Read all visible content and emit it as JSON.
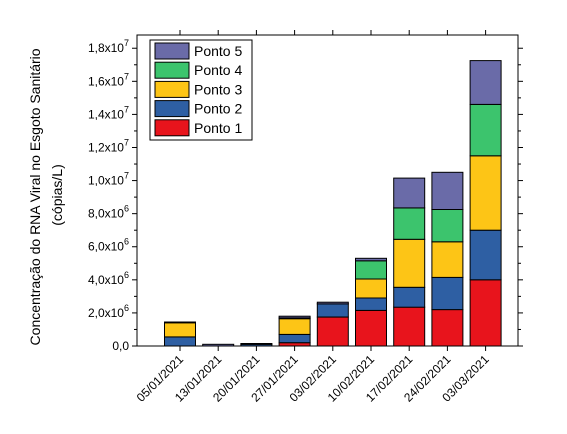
{
  "chart_data": {
    "type": "bar",
    "stacked": true,
    "title": "",
    "xlabel": "",
    "ylabel_line1": "Concentração do RNA Viral no Esgoto Sanitário",
    "ylabel_line2": "(cópias/L)",
    "ylim": [
      0,
      18800000
    ],
    "yticks": [
      {
        "value": 0,
        "mantissa": "0,0",
        "exp": ""
      },
      {
        "value": 2000000,
        "mantissa": "2,0x10",
        "exp": "6"
      },
      {
        "value": 4000000,
        "mantissa": "4,0x10",
        "exp": "6"
      },
      {
        "value": 6000000,
        "mantissa": "6,0x10",
        "exp": "6"
      },
      {
        "value": 8000000,
        "mantissa": "8,0x10",
        "exp": "6"
      },
      {
        "value": 10000000,
        "mantissa": "1,0x10",
        "exp": "7"
      },
      {
        "value": 12000000,
        "mantissa": "1,2x10",
        "exp": "7"
      },
      {
        "value": 14000000,
        "mantissa": "1,4x10",
        "exp": "7"
      },
      {
        "value": 16000000,
        "mantissa": "1,6x10",
        "exp": "7"
      },
      {
        "value": 18000000,
        "mantissa": "1,8x10",
        "exp": "7"
      }
    ],
    "categories": [
      "05/01/2021",
      "13/01/2021",
      "20/01/2021",
      "27/01/2021",
      "03/02/2021",
      "10/02/2021",
      "17/02/2021",
      "24/02/2021",
      "03/03/2021"
    ],
    "series": [
      {
        "name": "Ponto 1",
        "color": "#e8141c",
        "values": [
          0,
          0,
          0,
          200000,
          1750000,
          2150000,
          2350000,
          2200000,
          4000000
        ]
      },
      {
        "name": "Ponto 2",
        "color": "#2e5fa3",
        "values": [
          550000,
          0,
          100000,
          500000,
          800000,
          750000,
          1200000,
          1950000,
          3000000
        ]
      },
      {
        "name": "Ponto 3",
        "color": "#fdc516",
        "values": [
          850000,
          0,
          0,
          950000,
          0,
          1150000,
          2900000,
          2150000,
          4500000
        ]
      },
      {
        "name": "Ponto 4",
        "color": "#3cc46d",
        "values": [
          0,
          0,
          0,
          50000,
          0,
          1100000,
          1900000,
          1950000,
          3100000
        ]
      },
      {
        "name": "Ponto 5",
        "color": "#6a6ba8",
        "values": [
          50000,
          100000,
          50000,
          100000,
          100000,
          150000,
          1800000,
          2250000,
          2650000
        ]
      }
    ],
    "legend": {
      "placement": "top-left",
      "order": [
        "Ponto 5",
        "Ponto 4",
        "Ponto 3",
        "Ponto 2",
        "Ponto 1"
      ]
    },
    "grid": false
  }
}
